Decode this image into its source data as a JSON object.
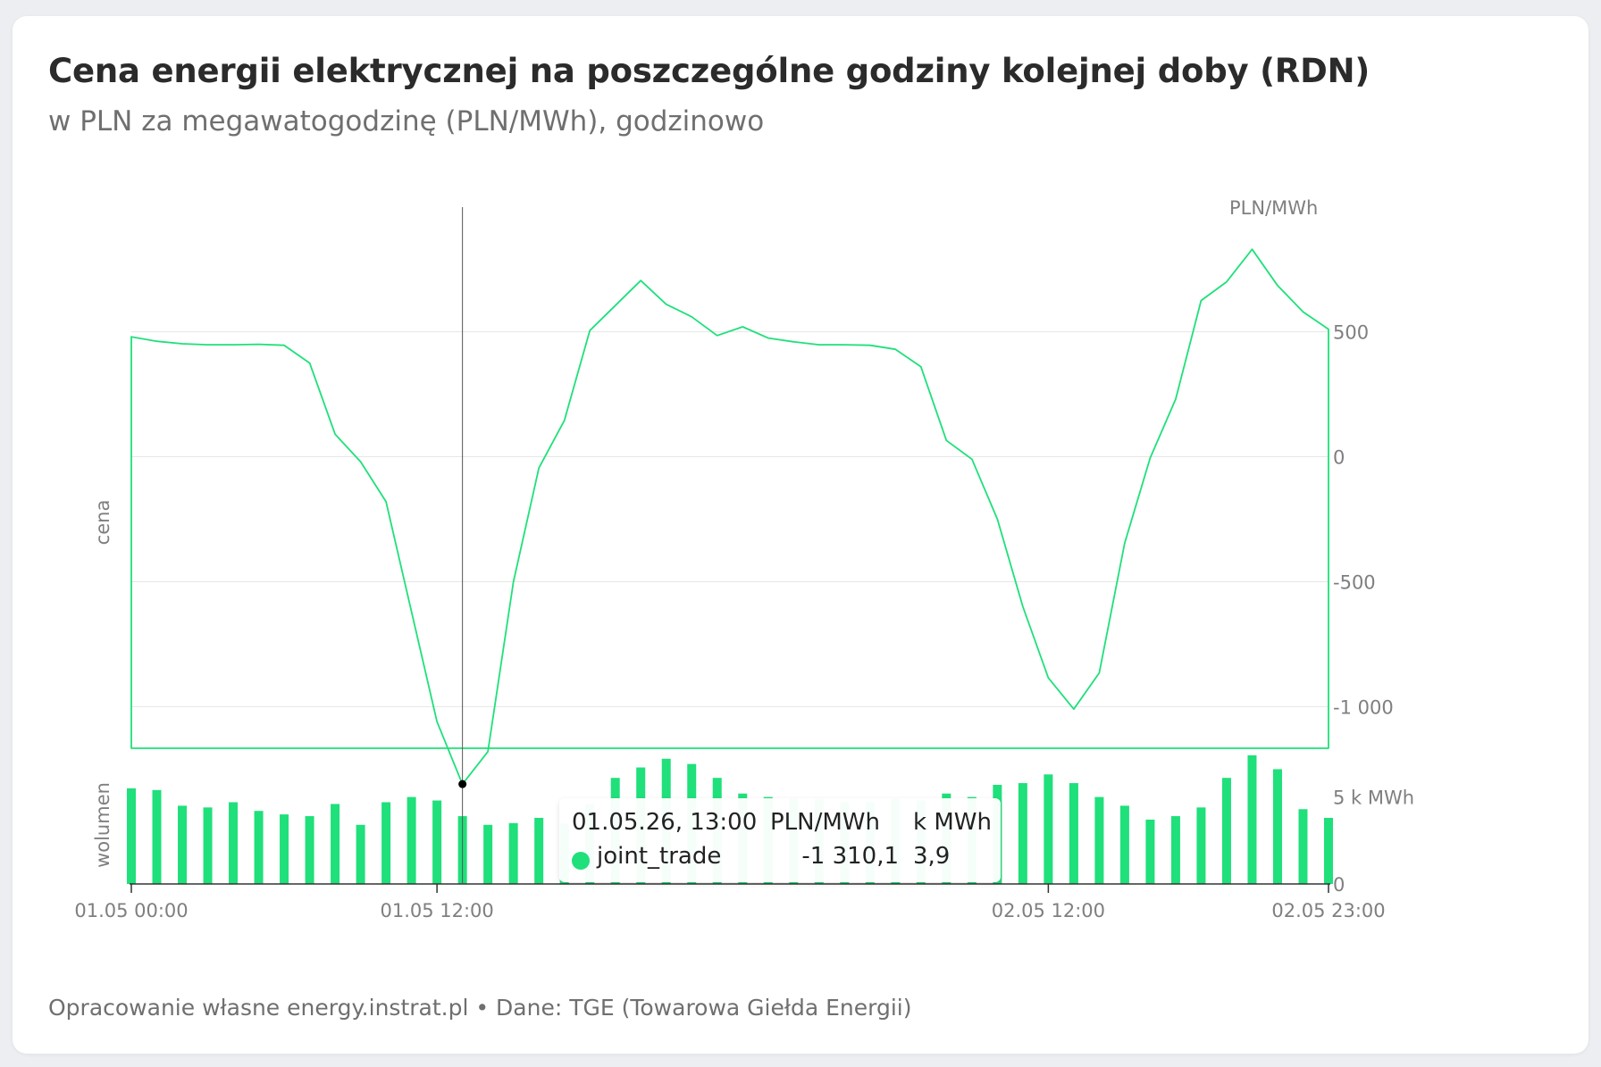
{
  "header": {
    "title": "Cena energii elektrycznej na poszczególne godziny kolejnej doby (RDN)",
    "subtitle": "w PLN za megawatogodzinę (PLN/MWh), godzinowo"
  },
  "footer": {
    "source": "Opracowanie własne energy.instrat.pl • Dane: TGE (Towarowa Giełda Energii)"
  },
  "tooltip": {
    "date": "01.05.26, 13:00",
    "unit_price": "PLN/MWh",
    "unit_volume": "k MWh",
    "series": "joint_trade",
    "price": "-1 310,1",
    "volume": "3,9"
  },
  "colors": {
    "series": "#1fe07a",
    "grid": "#e6e6e6",
    "axis_text": "#7f7f7f",
    "crosshair": "#555555"
  },
  "chart_data": [
    {
      "type": "line",
      "series": [
        {
          "name": "joint_trade",
          "values": [
            480,
            462,
            452,
            448,
            448,
            450,
            446,
            375,
            90,
            -20,
            -180,
            -620,
            -1060,
            -1310,
            -1180,
            -500,
            -45,
            145,
            505,
            605,
            705,
            610,
            560,
            485,
            520,
            475,
            460,
            448,
            448,
            446,
            430,
            360,
            65,
            -10,
            -250,
            -600,
            -885,
            -1010,
            -865,
            -345,
            -5,
            230,
            625,
            700,
            830,
            685,
            580,
            510
          ]
        }
      ],
      "x_tick_labels": [
        "01.05 00:00",
        "01.05 12:00",
        "02.05 12:00",
        "02.05 23:00"
      ],
      "ylabel": "cena",
      "y_unit_label": "PLN/MWh",
      "y_tick_labels": [
        "500",
        "0",
        "-500",
        "-1 000"
      ],
      "y_ticks": [
        500,
        0,
        -500,
        -1000
      ],
      "ylim": [
        -1170,
        820
      ],
      "grid": true
    },
    {
      "type": "bar",
      "series": [
        {
          "name": "joint_trade",
          "values": [
            5.5,
            5.4,
            4.5,
            4.4,
            4.7,
            4.2,
            4.0,
            3.9,
            4.6,
            3.4,
            4.7,
            5.0,
            4.8,
            3.9,
            3.4,
            3.5,
            3.8,
            3.5,
            4.6,
            6.1,
            6.7,
            7.2,
            6.9,
            6.1,
            5.2,
            5.0,
            4.9,
            4.9,
            4.7,
            4.7,
            4.9,
            4.8,
            5.2,
            5.0,
            5.7,
            5.8,
            6.3,
            5.8,
            5.0,
            4.5,
            3.7,
            3.9,
            4.4,
            6.1,
            7.4,
            6.6,
            4.3,
            3.8
          ]
        }
      ],
      "ylabel": "wolumen",
      "y_tick_labels": [
        "5 k MWh",
        "0"
      ],
      "y_ticks": [
        5,
        0
      ],
      "ylim": [
        0,
        7.6
      ]
    }
  ]
}
